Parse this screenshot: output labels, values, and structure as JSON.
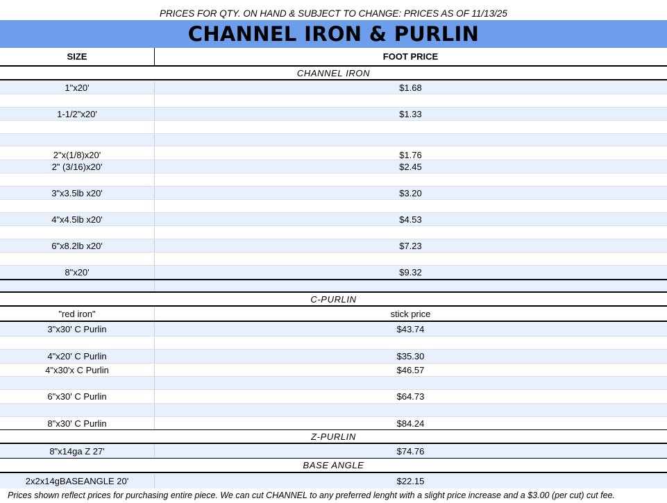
{
  "notice": "PRICES FOR QTY. ON HAND & SUBJECT TO CHANGE: PRICES AS OF 11/13/25",
  "title": "CHANNEL IRON & PURLIN",
  "header": {
    "size": "SIZE",
    "price": "FOOT PRICE"
  },
  "channel_iron": {
    "label": "CHANNEL IRON",
    "rows": [
      {
        "size": "1\"x20'",
        "price": "$1.68"
      },
      {
        "size": "",
        "price": ""
      },
      {
        "size": "1-1/2\"x20'",
        "price": "$1.33"
      },
      {
        "size": "",
        "price": ""
      },
      {
        "size": "",
        "price": ""
      },
      {
        "size": "2\"x(1/8)x20'",
        "price": "$1.76"
      },
      {
        "size": "2\" (3/16)x20'",
        "price": "$2.45"
      },
      {
        "size": "",
        "price": ""
      },
      {
        "size": "3\"x3.5lb x20'",
        "price": "$3.20"
      },
      {
        "size": "",
        "price": ""
      },
      {
        "size": "4\"x4.5lb x20'",
        "price": "$4.53"
      },
      {
        "size": "",
        "price": ""
      },
      {
        "size": "6\"x8.2lb x20'",
        "price": "$7.23"
      },
      {
        "size": "",
        "price": ""
      },
      {
        "size": "8\"x20'",
        "price": "$9.32"
      }
    ]
  },
  "c_purlin": {
    "label": "C-PURLIN",
    "subheader": {
      "size": "\"red iron\"",
      "price": "stick price"
    },
    "rows": [
      {
        "size": "3\"x30' C Purlin",
        "price": "$43.74"
      },
      {
        "size": "",
        "price": ""
      },
      {
        "size": "4\"x20' C Purlin",
        "price": "$35.30"
      },
      {
        "size": "4\"x30'x C Purlin",
        "price": "$46.57"
      },
      {
        "size": "",
        "price": ""
      },
      {
        "size": "6\"x30' C Purlin",
        "price": "$64.73"
      },
      {
        "size": "",
        "price": ""
      },
      {
        "size": "8\"x30' C Purlin",
        "price": "$84.24"
      }
    ]
  },
  "z_purlin": {
    "label": "Z-PURLIN",
    "rows": [
      {
        "size": "8\"x14ga Z 27'",
        "price": "$74.76"
      }
    ]
  },
  "base_angle": {
    "label": "BASE ANGLE",
    "rows": [
      {
        "size": "2x2x14gBASEANGLE 20'",
        "price": "$22.15"
      }
    ]
  },
  "footer": "Prices shown reflect prices for purchasing entire piece. We can cut CHANNEL to any preferred lenght with a slight price increase and a $3.00 (per cut) cut fee."
}
